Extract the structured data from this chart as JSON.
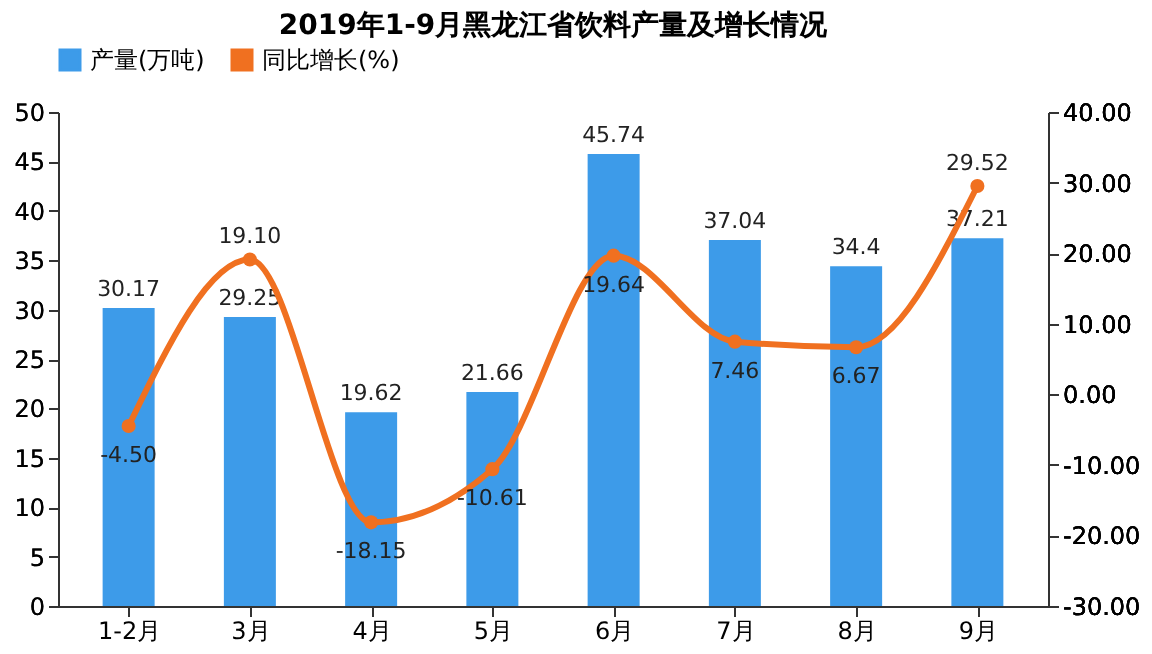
{
  "chart_data": {
    "type": "bar",
    "title": "2019年1-9月黑龙江省饮料产量及增长情况",
    "categories": [
      "1-2月",
      "3月",
      "4月",
      "5月",
      "6月",
      "7月",
      "8月",
      "9月"
    ],
    "series": [
      {
        "name": "产量(万吨)",
        "color": "#3d9be9",
        "values": [
          30.17,
          29.25,
          19.62,
          21.66,
          45.74,
          37.04,
          34.4,
          37.21
        ],
        "value_labels": [
          "30.17",
          "29.25",
          "19.62",
          "21.66",
          "45.74",
          "37.04",
          "34.4",
          "37.21"
        ]
      },
      {
        "name": "同比增长(%)",
        "type": "line",
        "axis": "y2",
        "color": "#f07020",
        "values": [
          -4.5,
          19.1,
          -18.15,
          -10.61,
          19.64,
          7.46,
          6.67,
          29.52
        ],
        "value_labels": [
          "-4.50",
          "19.10",
          "-18.15",
          "-10.61",
          "19.64",
          "7.46",
          "6.67",
          "29.52"
        ]
      }
    ],
    "ylim": [
      0,
      50
    ],
    "yticks": [
      0,
      5,
      10,
      15,
      20,
      25,
      30,
      35,
      40,
      45,
      50
    ],
    "y2lim": [
      -30,
      40
    ],
    "y2ticks": [
      {
        "value": -30,
        "label": "-30.00"
      },
      {
        "value": -20,
        "label": "-20.00"
      },
      {
        "value": -10,
        "label": "-10.00"
      },
      {
        "value": 0,
        "label": "0.00"
      },
      {
        "value": 10,
        "label": "10.00"
      },
      {
        "value": 20,
        "label": "20.00"
      },
      {
        "value": 30,
        "label": "30.00"
      },
      {
        "value": 40,
        "label": "40.00"
      }
    ],
    "legend": "top",
    "marker": "circle",
    "line_style": "solid",
    "grid": false
  }
}
